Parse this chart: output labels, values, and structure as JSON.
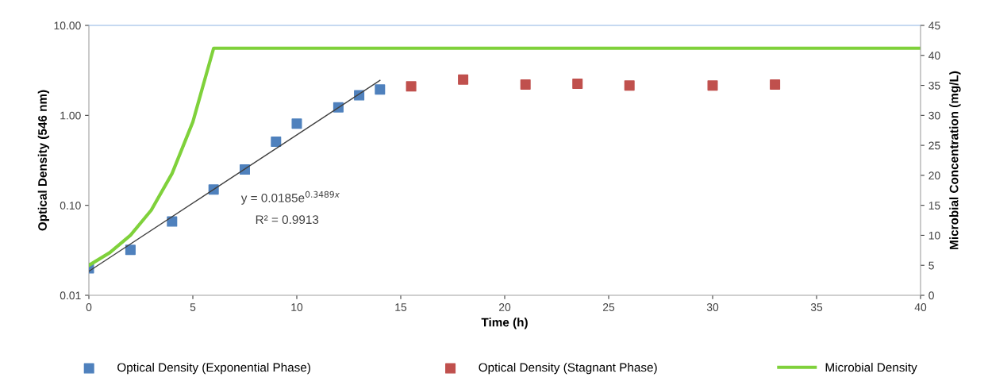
{
  "chart_data": {
    "type": "scatter",
    "xlabel": "Time (h)",
    "ylabel": "Optical Density (546 nm)",
    "y2label": "Microbial Concentration (mg/L)",
    "log": "y",
    "xlim": [
      0,
      40
    ],
    "xticks": [
      0,
      5,
      10,
      15,
      20,
      25,
      30,
      35,
      40
    ],
    "ylim": [
      0.01,
      10
    ],
    "yticks": [
      {
        "value": 0.01,
        "label": "0.01"
      },
      {
        "value": 0.1,
        "label": "0.10"
      },
      {
        "value": 1,
        "label": "1.00"
      },
      {
        "value": 10,
        "label": "10.00"
      }
    ],
    "y2lim": [
      0,
      45
    ],
    "y2ticks": [
      0,
      5,
      10,
      15,
      20,
      25,
      30,
      35,
      40,
      45
    ],
    "grid": false,
    "legend": "bottom",
    "marker": "square",
    "series": [
      {
        "name": "Optical Density (Exponential Phase)",
        "color": "#4f81bd",
        "x": [
          0,
          2,
          4,
          6,
          7.5,
          9,
          10,
          12,
          13,
          14
        ],
        "values": [
          0.02,
          0.032,
          0.066,
          0.15,
          0.25,
          0.51,
          0.81,
          1.23,
          1.67,
          1.94
        ]
      },
      {
        "name": "Optical Density (Stagnant Phase)",
        "color": "#c0504d",
        "x": [
          15.5,
          18,
          21,
          23.5,
          26,
          30,
          33
        ],
        "values": [
          2.1,
          2.5,
          2.2,
          2.25,
          2.15,
          2.15,
          2.2
        ]
      },
      {
        "name": "Microbial Density",
        "type": "line",
        "axis": "y2",
        "color": "#7fd13b",
        "marker": "none",
        "x": [
          0,
          1,
          2,
          3,
          4,
          5,
          6,
          40
        ],
        "values": [
          5.0,
          7.1,
          10.0,
          14.2,
          20.3,
          28.9,
          41.2,
          41.2
        ]
      },
      {
        "type": "line",
        "color": "#404040",
        "marker": "none",
        "x": [
          0,
          14
        ],
        "values": [
          0.0185,
          2.45
        ]
      }
    ],
    "annotations": [
      "y = 0.0185e$^{0.3489x}$",
      "R² = 0.9913"
    ]
  }
}
